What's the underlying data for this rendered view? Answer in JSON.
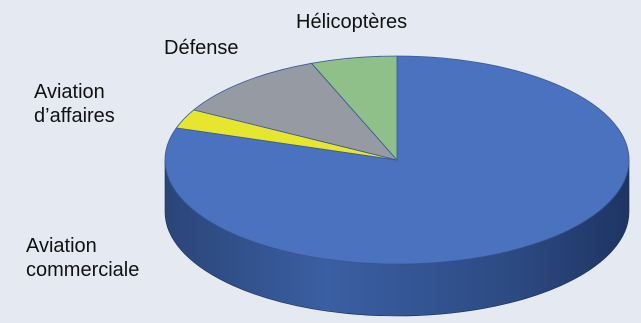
{
  "chart_data": {
    "type": "pie",
    "three_d": true,
    "title": "",
    "legend": "none",
    "background": "#e5e9f1",
    "categories": [
      "Aviation commerciale",
      "Aviation d’affaires",
      "Défense",
      "Hélicoptères"
    ],
    "values": [
      80,
      3,
      11,
      6
    ],
    "colors": [
      "#4a72be",
      "#e6e62e",
      "#959aa3",
      "#8fc08a"
    ],
    "labels": [
      {
        "line1": "Aviation",
        "line2": "commerciale"
      },
      {
        "line1": "Aviation",
        "line2": "d’affaires"
      },
      {
        "line1": "Défense",
        "line2": ""
      },
      {
        "line1": "Hélicoptères",
        "line2": ""
      }
    ]
  }
}
